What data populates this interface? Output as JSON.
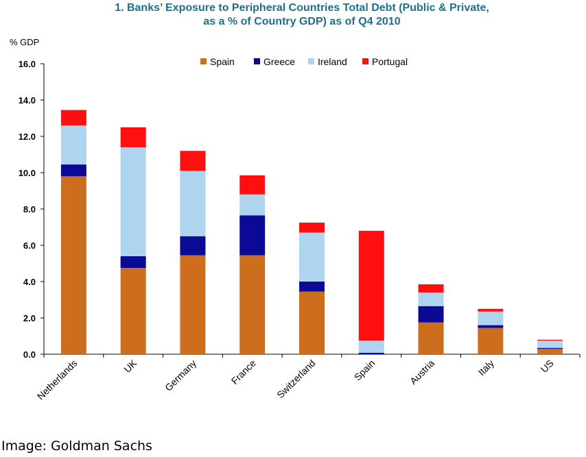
{
  "title_line1": "1. Banks’ Exposure to Peripheral Countries Total Debt (Public & Private,",
  "title_line2": "as a % of Country GDP) as of Q4 2010",
  "y_unit": "% GDP",
  "credit": "Image: Goldman Sachs",
  "colors": {
    "Spain": "#cc6e1e",
    "Greece": "#0a0a96",
    "Ireland": "#aed4f0",
    "Portugal": "#ff0f0f"
  },
  "chart_data": {
    "type": "bar",
    "stacked": true,
    "title": "1. Banks’ Exposure to Peripheral Countries Total Debt (Public & Private, as a % of Country GDP) as of Q4 2010",
    "xlabel": "",
    "ylabel": "% GDP",
    "ylim": [
      0,
      16
    ],
    "yticks": [
      "0.0",
      "2.0",
      "4.0",
      "6.0",
      "8.0",
      "10.0",
      "12.0",
      "14.0",
      "16.0"
    ],
    "grid": false,
    "legend": "top",
    "categories": [
      "Netherlands",
      "UK",
      "Germany",
      "France",
      "Switzerland",
      "Spain",
      "Austria",
      "Italy",
      "US"
    ],
    "series": [
      {
        "name": "Spain",
        "values": [
          9.8,
          4.75,
          5.45,
          5.45,
          3.45,
          0.0,
          1.75,
          1.45,
          0.3
        ]
      },
      {
        "name": "Greece",
        "values": [
          0.65,
          0.65,
          1.05,
          2.2,
          0.55,
          0.08,
          0.9,
          0.15,
          0.05
        ]
      },
      {
        "name": "Ireland",
        "values": [
          2.15,
          6.0,
          3.6,
          1.15,
          2.7,
          0.67,
          0.75,
          0.75,
          0.4
        ]
      },
      {
        "name": "Portugal",
        "values": [
          0.85,
          1.1,
          1.1,
          1.05,
          0.55,
          6.05,
          0.45,
          0.15,
          0.05
        ]
      }
    ]
  }
}
